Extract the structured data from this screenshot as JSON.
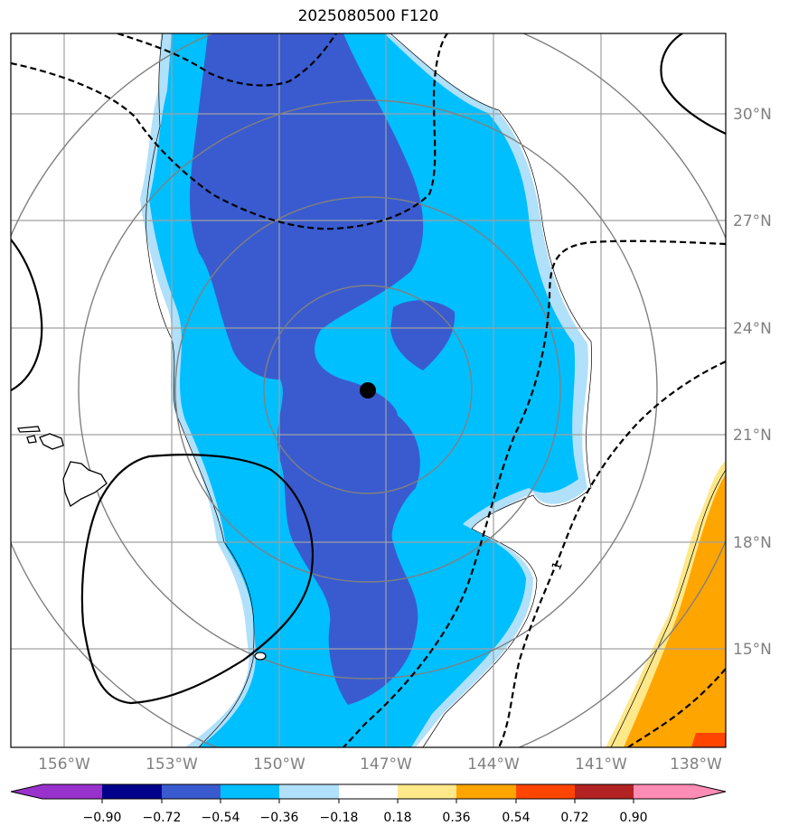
{
  "title": "2025080500 F120",
  "map": {
    "longitude_labels": [
      "156°W",
      "153°W",
      "150°W",
      "147°W",
      "144°W",
      "141°W",
      "138°W"
    ],
    "latitude_labels": [
      "30°N",
      "27°N",
      "24°N",
      "21°N",
      "18°N",
      "15°N"
    ],
    "contour_label": "1",
    "colors": {
      "lt_-0.90": "#9932cc",
      "-0.90_-0.72": "#00008b",
      "-0.72_-0.54": "#3a5bcf",
      "-0.54_-0.36": "#00bfff",
      "-0.36_-0.18": "#b0e0fa",
      "-0.18_0.18": "#ffffff",
      "0.18_0.36": "#ffe88a",
      "0.36_0.54": "#ffa500",
      "0.54_0.72": "#ff4500",
      "0.72_0.90": "#b22222",
      "gt_0.90": "#ff8cb4"
    }
  },
  "colorbar": {
    "tick_labels": [
      "−0.90",
      "−0.72",
      "−0.54",
      "−0.36",
      "−0.18",
      "0.18",
      "0.36",
      "0.54",
      "0.72",
      "0.90"
    ]
  }
}
